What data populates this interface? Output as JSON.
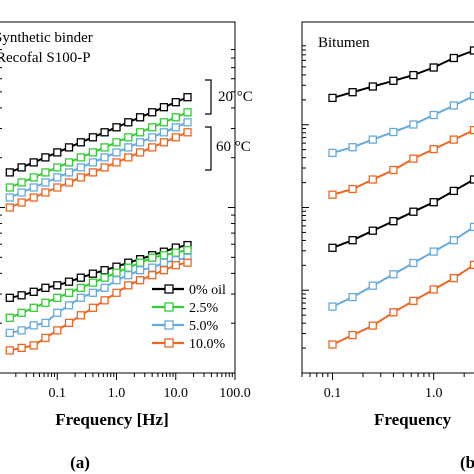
{
  "figure": {
    "caption_a": "(a)",
    "caption_b": "(b"
  },
  "chart_data": [
    {
      "panel": "a",
      "type": "line",
      "x_scale": "log",
      "y_scale": "log",
      "xlim": [
        0.01,
        100.0
      ],
      "x_ticks": [
        "0.1",
        "1.0",
        "10.0",
        "100.0"
      ],
      "xlabel": "Frequency [Hz]",
      "annotations": [
        "Synthetic binder",
        "Recofal S100-P",
        "20 °C",
        "60 °C"
      ],
      "legend": {
        "placement": "bottom-right",
        "entries": [
          "0% oil",
          "2.5%",
          "5.0%",
          "10.0%"
        ]
      },
      "colors": {
        "0% oil": "#000000",
        "2.5%": "#33cc33",
        "5.0%": "#66aadd",
        "10.0%": "#ee6622"
      },
      "series": [
        {
          "name": "0% oil",
          "group": "20 °C",
          "x": [
            0.0158,
            0.025,
            0.04,
            0.063,
            0.1,
            0.158,
            0.25,
            0.4,
            0.63,
            1.0,
            1.58,
            2.5,
            4.0,
            6.3,
            10.0,
            15.8
          ],
          "y": [
            0.3,
            0.31,
            0.32,
            0.33,
            0.34,
            0.35,
            0.36,
            0.37,
            0.38,
            0.39,
            0.4,
            0.41,
            0.42,
            0.43,
            0.44,
            0.45
          ]
        },
        {
          "name": "2.5%",
          "group": "20 °C",
          "x": [
            0.0158,
            0.025,
            0.04,
            0.063,
            0.1,
            0.158,
            0.25,
            0.4,
            0.63,
            1.0,
            1.58,
            2.5,
            4.0,
            6.3,
            10.0,
            15.8
          ],
          "y": [
            0.27,
            0.28,
            0.29,
            0.3,
            0.31,
            0.32,
            0.33,
            0.34,
            0.35,
            0.36,
            0.37,
            0.38,
            0.39,
            0.4,
            0.41,
            0.42
          ]
        },
        {
          "name": "5.0%",
          "group": "20 °C",
          "x": [
            0.0158,
            0.025,
            0.04,
            0.063,
            0.1,
            0.158,
            0.25,
            0.4,
            0.63,
            1.0,
            1.58,
            2.5,
            4.0,
            6.3,
            10.0,
            15.8
          ],
          "y": [
            0.25,
            0.26,
            0.27,
            0.28,
            0.29,
            0.3,
            0.31,
            0.32,
            0.33,
            0.34,
            0.35,
            0.36,
            0.37,
            0.38,
            0.39,
            0.4
          ]
        },
        {
          "name": "10.0%",
          "group": "20 °C",
          "x": [
            0.0158,
            0.025,
            0.04,
            0.063,
            0.1,
            0.158,
            0.25,
            0.4,
            0.63,
            1.0,
            1.58,
            2.5,
            4.0,
            6.3,
            10.0,
            15.8
          ],
          "y": [
            0.23,
            0.24,
            0.25,
            0.26,
            0.27,
            0.28,
            0.29,
            0.3,
            0.31,
            0.32,
            0.33,
            0.34,
            0.35,
            0.36,
            0.37,
            0.38
          ]
        },
        {
          "name": "0% oil",
          "group": "60 °C",
          "x": [
            0.0158,
            0.025,
            0.04,
            0.063,
            0.1,
            0.158,
            0.25,
            0.4,
            0.63,
            1.0,
            1.58,
            2.5,
            4.0,
            6.3,
            10.0,
            15.8
          ],
          "y": [
            0.05,
            0.055,
            0.062,
            0.07,
            0.075,
            0.082,
            0.09,
            0.098,
            0.105,
            0.112,
            0.12,
            0.127,
            0.135,
            0.142,
            0.15,
            0.155
          ]
        },
        {
          "name": "2.5%",
          "group": "60 °C",
          "x": [
            0.0158,
            0.025,
            0.04,
            0.063,
            0.1,
            0.158,
            0.25,
            0.4,
            0.63,
            1.0,
            1.58,
            2.5,
            4.0,
            6.3,
            10.0,
            15.8
          ],
          "y": [
            0.01,
            0.02,
            0.03,
            0.04,
            0.05,
            0.06,
            0.07,
            0.08,
            0.09,
            0.1,
            0.11,
            0.12,
            0.13,
            0.135,
            0.14,
            0.145
          ]
        },
        {
          "name": "5.0%",
          "group": "60 °C",
          "x": [
            0.0158,
            0.025,
            0.04,
            0.063,
            0.1,
            0.158,
            0.25,
            0.4,
            0.63,
            1.0,
            1.58,
            2.5,
            4.0,
            6.3,
            10.0,
            15.8
          ],
          "y": [
            -0.02,
            -0.015,
            -0.005,
            0.0,
            0.02,
            0.035,
            0.05,
            0.06,
            0.07,
            0.085,
            0.095,
            0.105,
            0.11,
            0.12,
            0.125,
            0.13
          ]
        },
        {
          "name": "10.0%",
          "group": "60 °C",
          "x": [
            0.0158,
            0.025,
            0.04,
            0.063,
            0.1,
            0.158,
            0.25,
            0.4,
            0.63,
            1.0,
            1.58,
            2.5,
            4.0,
            6.3,
            10.0,
            15.8
          ],
          "y": [
            -0.055,
            -0.05,
            -0.045,
            -0.03,
            -0.015,
            0.0,
            0.015,
            0.03,
            0.045,
            0.06,
            0.075,
            0.085,
            0.095,
            0.105,
            0.115,
            0.12
          ]
        }
      ]
    },
    {
      "panel": "b",
      "type": "line",
      "x_scale": "log",
      "y_scale": "log",
      "xlim": [
        0.05,
        3.0
      ],
      "x_ticks": [
        "0.1",
        "1.0"
      ],
      "xlabel": "Frequency",
      "annotations": [
        "Bitumen"
      ],
      "colors": {
        "0% oil": "#000000",
        "5.0%": "#66aadd",
        "10.0%": "#ee6622"
      },
      "series": [
        {
          "name": "0% oil",
          "group": "upper",
          "x": [
            0.1,
            0.158,
            0.25,
            0.4,
            0.63,
            1.0,
            1.58,
            2.5
          ],
          "y": [
            1.15,
            1.18,
            1.21,
            1.24,
            1.27,
            1.31,
            1.36,
            1.4
          ]
        },
        {
          "name": "5.0%",
          "group": "upper",
          "x": [
            0.1,
            0.158,
            0.25,
            0.4,
            0.63,
            1.0,
            1.58,
            2.5
          ],
          "y": [
            0.86,
            0.89,
            0.93,
            0.97,
            1.01,
            1.06,
            1.11,
            1.16
          ]
        },
        {
          "name": "10.0%",
          "group": "upper",
          "x": [
            0.1,
            0.158,
            0.25,
            0.4,
            0.63,
            1.0,
            1.58,
            2.5
          ],
          "y": [
            0.64,
            0.67,
            0.72,
            0.77,
            0.83,
            0.88,
            0.93,
            0.98
          ]
        },
        {
          "name": "0% oil",
          "group": "lower",
          "x": [
            0.1,
            0.158,
            0.25,
            0.4,
            0.63,
            1.0,
            1.58,
            2.5
          ],
          "y": [
            0.36,
            0.4,
            0.45,
            0.5,
            0.55,
            0.6,
            0.66,
            0.72
          ]
        },
        {
          "name": "5.0%",
          "group": "lower",
          "x": [
            0.1,
            0.158,
            0.25,
            0.4,
            0.63,
            1.0,
            1.58,
            2.5
          ],
          "y": [
            0.05,
            0.1,
            0.16,
            0.22,
            0.28,
            0.34,
            0.4,
            0.47
          ]
        },
        {
          "name": "10.0%",
          "group": "lower",
          "x": [
            0.1,
            0.158,
            0.25,
            0.4,
            0.63,
            1.0,
            1.58,
            2.5
          ],
          "y": [
            -0.15,
            -0.1,
            -0.05,
            0.02,
            0.08,
            0.14,
            0.2,
            0.27
          ]
        }
      ]
    }
  ]
}
